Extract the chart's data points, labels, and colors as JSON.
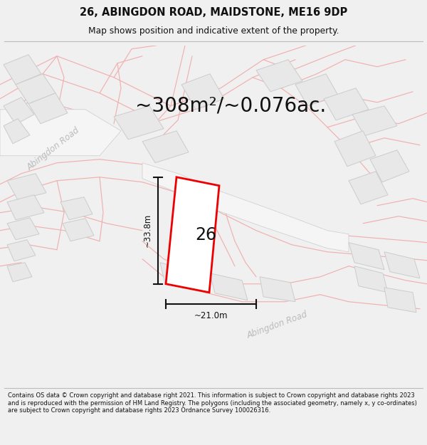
{
  "title_line1": "26, ABINGDON ROAD, MAIDSTONE, ME16 9DP",
  "title_line2": "Map shows position and indicative extent of the property.",
  "area_text": "~308m²/~0.076ac.",
  "property_number": "26",
  "dim_width": "~21.0m",
  "dim_height": "~33.8m",
  "road_label1": "Abingdon Road",
  "road_label2": "Abingdon Road",
  "footer_text": "Contains OS data © Crown copyright and database right 2021. This information is subject to Crown copyright and database rights 2023 and is reproduced with the permission of HM Land Registry. The polygons (including the associated geometry, namely x, y co-ordinates) are subject to Crown copyright and database rights 2023 Ordnance Survey 100026316.",
  "bg_color": "#f0f0f0",
  "map_bg": "#ffffff",
  "property_fill": "#ffffff",
  "property_edge": "#ee0000",
  "parcel_fill": "#e8e8e8",
  "parcel_edge": "#cccccc",
  "road_line_color": "#f0b0b0",
  "dim_color": "#111111",
  "title_color": "#111111",
  "area_text_color": "#111111",
  "road_text_color": "#bbbbbb",
  "footer_color": "#111111",
  "title_fontsize": 10.5,
  "subtitle_fontsize": 8.8,
  "area_fontsize": 20,
  "number_fontsize": 17,
  "dim_fontsize": 8.5,
  "road_fontsize": 8.5,
  "footer_fontsize": 6.0
}
